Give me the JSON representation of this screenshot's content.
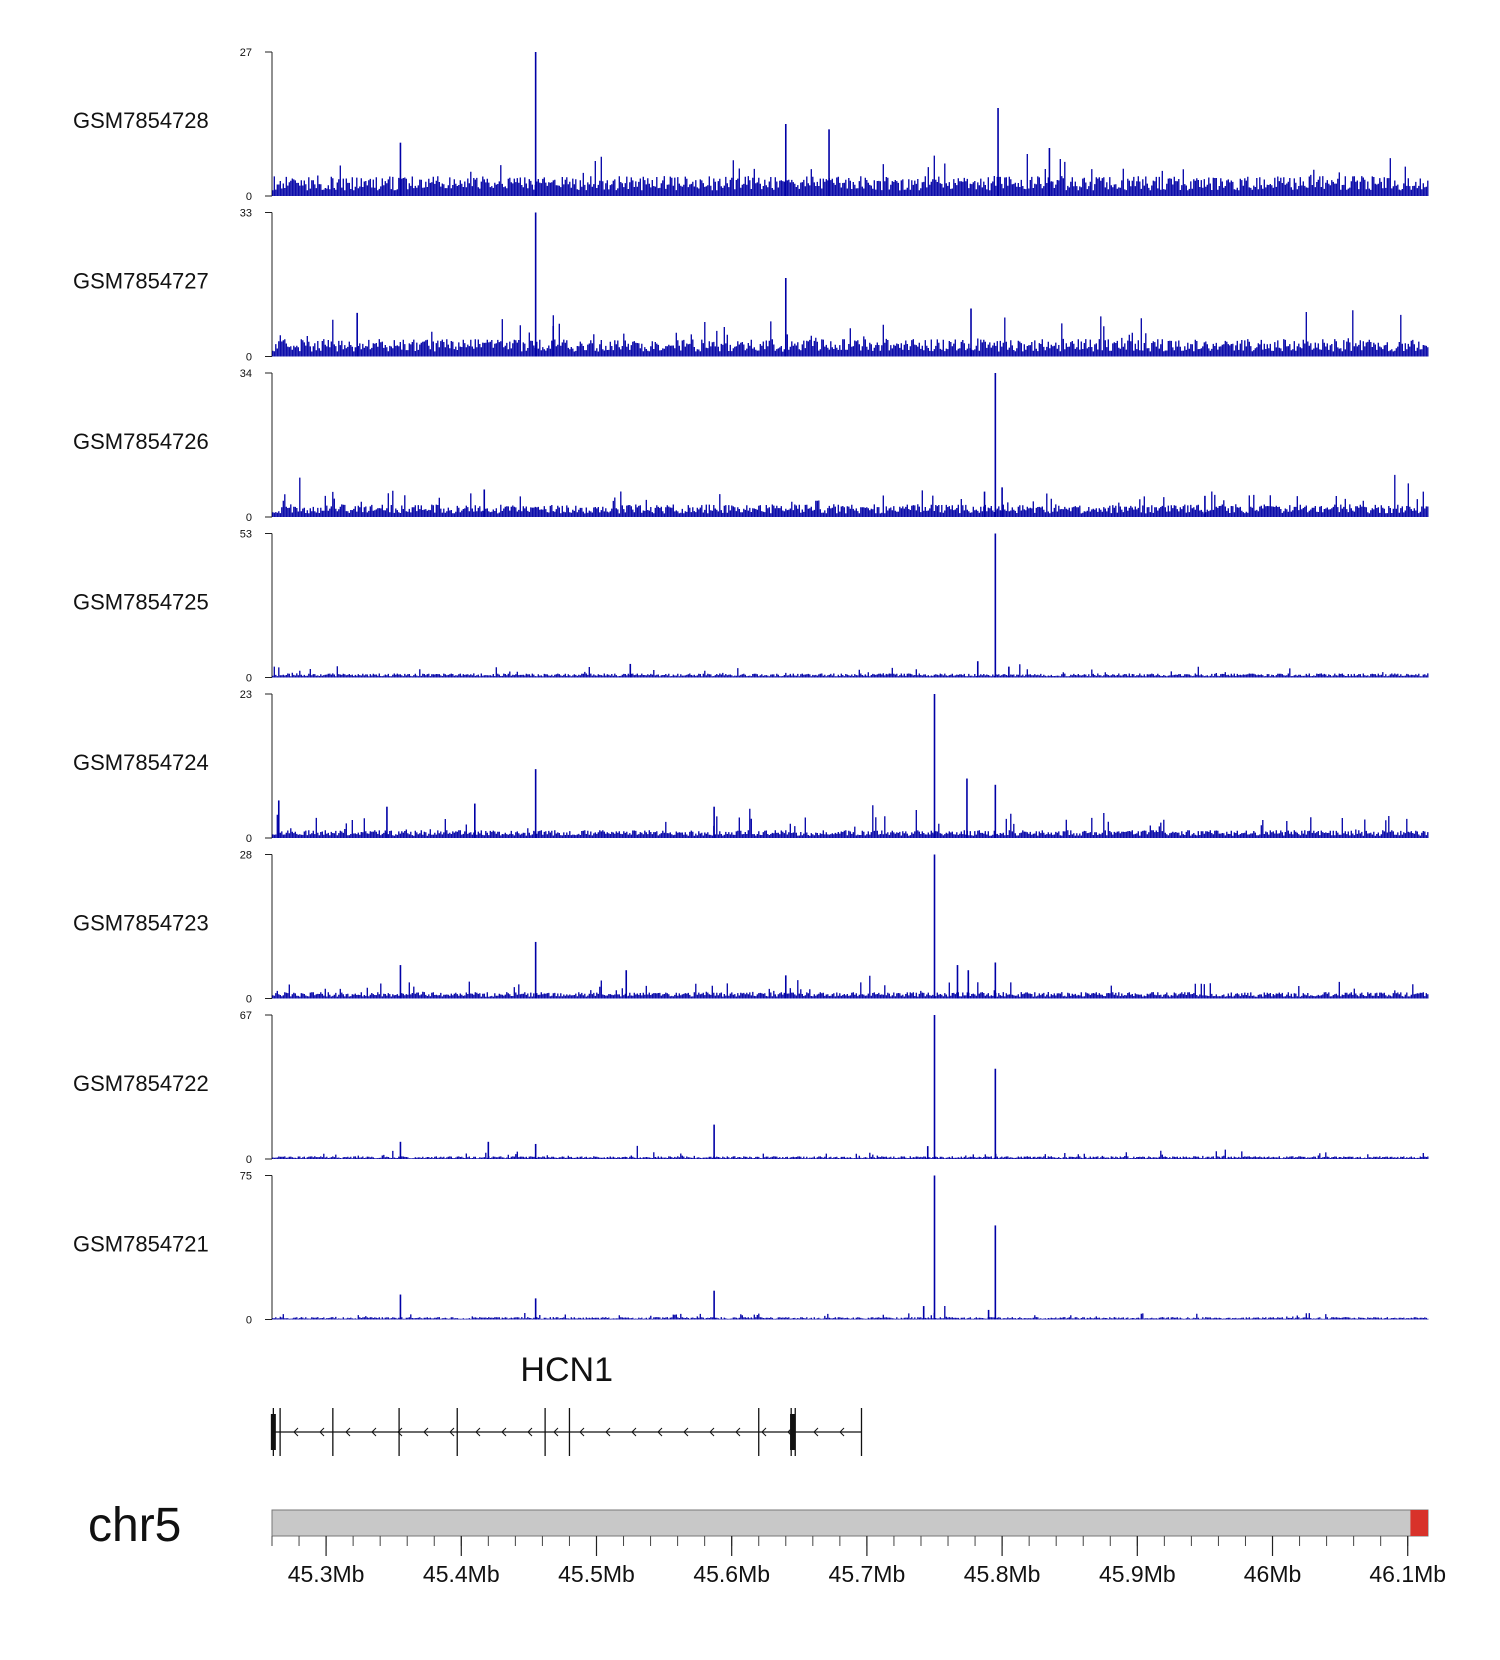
{
  "chart_data": {
    "type": "bar",
    "chromosome": "chr5",
    "x_range": [
      45.26,
      46.115
    ],
    "x_unit": "Mb",
    "bar_color": "#0000a6",
    "tracks": [
      {
        "name": "GSM7854728",
        "ymin": 0,
        "ymax": 27,
        "baseline": 3.0,
        "noise": 1.6,
        "peaks": [
          [
            45.455,
            27
          ],
          [
            45.64,
            13.5
          ],
          [
            45.797,
            16.5
          ],
          [
            45.672,
            12.5
          ],
          [
            45.355,
            10
          ],
          [
            45.835,
            9
          ]
        ]
      },
      {
        "name": "GSM7854727",
        "ymin": 0,
        "ymax": 33,
        "baseline": 3.2,
        "noise": 2.0,
        "peaks": [
          [
            45.455,
            33
          ],
          [
            45.64,
            18
          ],
          [
            45.323,
            10
          ],
          [
            45.777,
            11
          ],
          [
            45.468,
            7
          ]
        ]
      },
      {
        "name": "GSM7854726",
        "ymin": 0,
        "ymax": 34,
        "baseline": 2.4,
        "noise": 1.4,
        "peaks": [
          [
            45.795,
            34
          ],
          [
            45.8,
            7
          ],
          [
            45.417,
            6.5
          ],
          [
            45.787,
            6
          ],
          [
            45.95,
            5
          ]
        ]
      },
      {
        "name": "GSM7854725",
        "ymin": 0,
        "ymax": 53,
        "baseline": 1.2,
        "noise": 1.0,
        "peaks": [
          [
            45.795,
            53
          ],
          [
            45.782,
            6
          ],
          [
            45.525,
            5
          ],
          [
            45.805,
            4
          ]
        ]
      },
      {
        "name": "GSM7854724",
        "ymin": 0,
        "ymax": 23,
        "baseline": 1.0,
        "noise": 0.9,
        "peaks": [
          [
            45.75,
            23
          ],
          [
            45.455,
            11
          ],
          [
            45.774,
            9.5
          ],
          [
            45.795,
            8.5
          ],
          [
            45.587,
            5
          ],
          [
            45.41,
            5.5
          ],
          [
            45.345,
            5
          ],
          [
            45.265,
            6
          ]
        ]
      },
      {
        "name": "GSM7854723",
        "ymin": 0,
        "ymax": 28,
        "baseline": 1.0,
        "noise": 0.8,
        "peaks": [
          [
            45.75,
            28
          ],
          [
            45.455,
            11
          ],
          [
            45.355,
            6.5
          ],
          [
            45.522,
            5.5
          ],
          [
            45.767,
            6.5
          ],
          [
            45.795,
            7
          ],
          [
            45.775,
            5.5
          ],
          [
            45.64,
            4.5
          ]
        ]
      },
      {
        "name": "GSM7854722",
        "ymin": 0,
        "ymax": 67,
        "baseline": 1.0,
        "noise": 0.8,
        "peaks": [
          [
            45.75,
            67
          ],
          [
            45.795,
            42
          ],
          [
            45.587,
            16
          ],
          [
            45.355,
            8
          ],
          [
            45.42,
            8
          ],
          [
            45.455,
            7
          ],
          [
            45.745,
            6
          ]
        ]
      },
      {
        "name": "GSM7854721",
        "ymin": 0,
        "ymax": 75,
        "baseline": 1.0,
        "noise": 0.9,
        "peaks": [
          [
            45.75,
            75
          ],
          [
            45.795,
            49
          ],
          [
            45.587,
            15
          ],
          [
            45.355,
            13
          ],
          [
            45.455,
            11
          ],
          [
            45.742,
            7
          ],
          [
            45.79,
            5
          ]
        ]
      }
    ],
    "gene": {
      "name": "HCN1",
      "strand": "-",
      "start": 45.26,
      "end": 45.696,
      "exons": [
        45.261,
        45.266,
        45.305,
        45.354,
        45.397,
        45.462,
        45.48,
        45.62,
        45.644,
        45.647,
        45.696
      ],
      "thick_exons": [
        45.261,
        45.645
      ]
    },
    "ideogram": {
      "color": "#c8c8c8",
      "highlight_color": "#d8322a",
      "highlight_range": [
        46.102,
        46.115
      ]
    },
    "x_ticks": [
      {
        "value": 45.3,
        "label": "45.3Mb"
      },
      {
        "value": 45.4,
        "label": "45.4Mb"
      },
      {
        "value": 45.5,
        "label": "45.5Mb"
      },
      {
        "value": 45.6,
        "label": "45.6Mb"
      },
      {
        "value": 45.7,
        "label": "45.7Mb"
      },
      {
        "value": 45.8,
        "label": "45.8Mb"
      },
      {
        "value": 45.9,
        "label": "45.9Mb"
      },
      {
        "value": 46.0,
        "label": "46Mb"
      },
      {
        "value": 46.1,
        "label": "46.1Mb"
      }
    ],
    "minor_tick_step": 0.02
  }
}
